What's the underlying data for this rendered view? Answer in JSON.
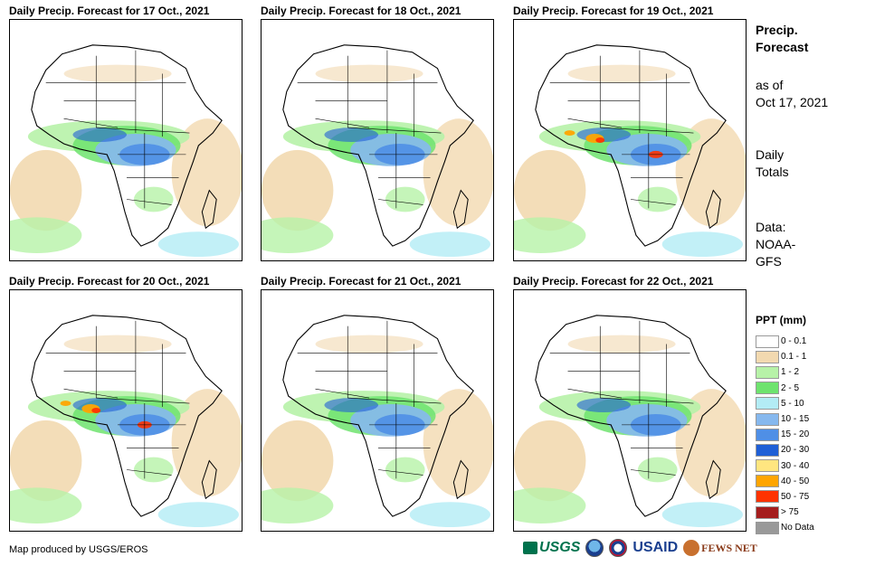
{
  "panels": [
    {
      "title": "Daily Precip. Forecast for 17 Oct., 2021",
      "intensity": "moderate"
    },
    {
      "title": "Daily Precip. Forecast for 18 Oct., 2021",
      "intensity": "moderate"
    },
    {
      "title": "Daily Precip. Forecast for 19 Oct., 2021",
      "intensity": "heavy"
    },
    {
      "title": "Daily Precip. Forecast for 20 Oct., 2021",
      "intensity": "heavy"
    },
    {
      "title": "Daily Precip. Forecast for 21 Oct., 2021",
      "intensity": "moderate"
    },
    {
      "title": "Daily Precip. Forecast for 22 Oct., 2021",
      "intensity": "moderate"
    }
  ],
  "sidebar": {
    "title_line1": "Precip.",
    "title_line2": "Forecast",
    "asof_line1": "as of",
    "asof_line2": "Oct 17, 2021",
    "daily_line1": "Daily",
    "daily_line2": "Totals",
    "data_line1": "Data:",
    "data_line2": "NOAA-",
    "data_line3": "GFS"
  },
  "legend": {
    "title": "PPT (mm)",
    "items": [
      {
        "label": "0 - 0.1",
        "color": "#ffffff"
      },
      {
        "label": "0.1 - 1",
        "color": "#f2d9b0"
      },
      {
        "label": "1 - 2",
        "color": "#b7f2a8"
      },
      {
        "label": "2 - 5",
        "color": "#6ee36e"
      },
      {
        "label": "5 - 10",
        "color": "#b3ecf5"
      },
      {
        "label": "10 - 15",
        "color": "#86b8ee"
      },
      {
        "label": "15 - 20",
        "color": "#4f8fe6"
      },
      {
        "label": "20 - 30",
        "color": "#1f5fd6"
      },
      {
        "label": "30 - 40",
        "color": "#ffe680"
      },
      {
        "label": "40 - 50",
        "color": "#ffa500"
      },
      {
        "label": "50 - 75",
        "color": "#ff3300"
      },
      {
        "label": "> 75",
        "color": "#a51d1d"
      },
      {
        "label": "No Data",
        "color": "#999999"
      }
    ]
  },
  "footer": {
    "credit": "Map produced by USGS/EROS",
    "logo_usgs": "USGS",
    "logo_usaid": "USAID",
    "logo_fews": "FEWS NET"
  }
}
